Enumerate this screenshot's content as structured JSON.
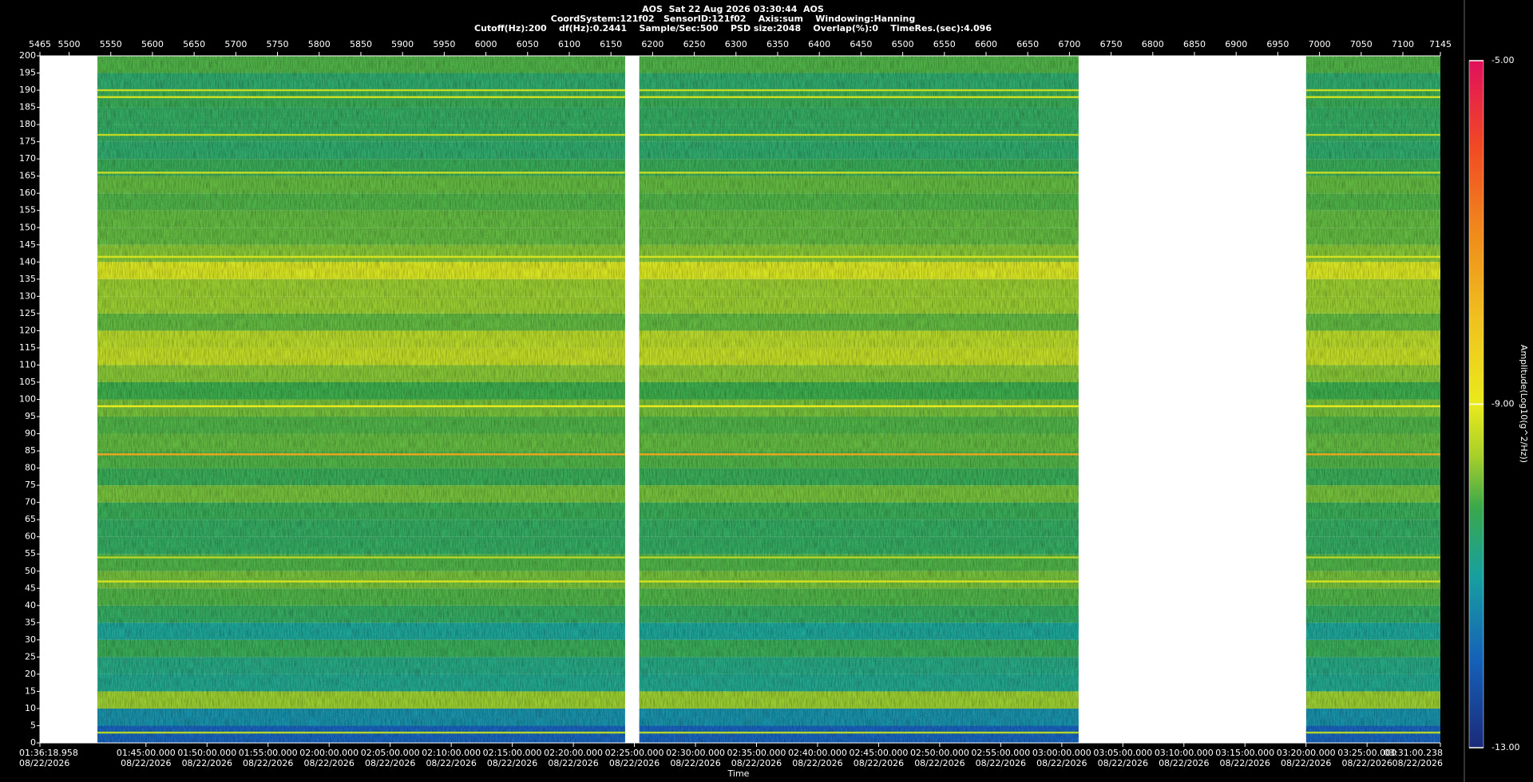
{
  "chart_data": {
    "type": "spectrogram",
    "title": "AOS  Sat 22 Aug 2026 03:30:44  AOS",
    "subtitle": "CoordSystem:121f02   SensorID:121f02    Axis:sum    Windowing:Hanning",
    "settings_line": "Cutoff(Hz):200    df(Hz):0.2441    Sample/Sec:500    PSD size:2048    Overlap(%):0    TimeRes.(sec):4.096",
    "xlabel": "Time",
    "colorbar_label": "Amplitude(Log10(g^2/Hz))",
    "x2lim": [
      5465,
      7145
    ],
    "x2ticks": [
      5465,
      5500,
      5550,
      5600,
      5650,
      5700,
      5750,
      5800,
      5850,
      5900,
      5950,
      6000,
      6050,
      6100,
      6150,
      6200,
      6250,
      6300,
      6350,
      6400,
      6450,
      6500,
      6550,
      6600,
      6650,
      6700,
      6750,
      6800,
      6850,
      6900,
      6950,
      7000,
      7050,
      7100,
      7145
    ],
    "xlim": [
      5778.958,
      12660.238
    ],
    "xticks": [
      {
        "value": 5778.958,
        "label": "01:36:18.958",
        "date": "08/22/2026"
      },
      {
        "value": 6300,
        "label": "01:45:00.000",
        "date": "08/22/2026"
      },
      {
        "value": 6600,
        "label": "01:50:00.000",
        "date": "08/22/2026"
      },
      {
        "value": 6900,
        "label": "01:55:00.000",
        "date": "08/22/2026"
      },
      {
        "value": 7200,
        "label": "02:00:00.000",
        "date": "08/22/2026"
      },
      {
        "value": 7500,
        "label": "02:05:00.000",
        "date": "08/22/2026"
      },
      {
        "value": 7800,
        "label": "02:10:00.000",
        "date": "08/22/2026"
      },
      {
        "value": 8100,
        "label": "02:15:00.000",
        "date": "08/22/2026"
      },
      {
        "value": 8400,
        "label": "02:20:00.000",
        "date": "08/22/2026"
      },
      {
        "value": 8700,
        "label": "02:25:00.000",
        "date": "08/22/2026"
      },
      {
        "value": 9000,
        "label": "02:30:00.000",
        "date": "08/22/2026"
      },
      {
        "value": 9300,
        "label": "02:35:00.000",
        "date": "08/22/2026"
      },
      {
        "value": 9600,
        "label": "02:40:00.000",
        "date": "08/22/2026"
      },
      {
        "value": 9900,
        "label": "02:45:00.000",
        "date": "08/22/2026"
      },
      {
        "value": 10200,
        "label": "02:50:00.000",
        "date": "08/22/2026"
      },
      {
        "value": 10500,
        "label": "02:55:00.000",
        "date": "08/22/2026"
      },
      {
        "value": 10800,
        "label": "03:00:00.000",
        "date": "08/22/2026"
      },
      {
        "value": 11100,
        "label": "03:05:00.000",
        "date": "08/22/2026"
      },
      {
        "value": 11400,
        "label": "03:10:00.000",
        "date": "08/22/2026"
      },
      {
        "value": 11700,
        "label": "03:15:00.000",
        "date": "08/22/2026"
      },
      {
        "value": 12000,
        "label": "03:20:00.000",
        "date": "08/22/2026"
      },
      {
        "value": 12300,
        "label": "03:25:00.000",
        "date": "08/22/2026"
      },
      {
        "value": 12660.238,
        "label": "03:31:00.238",
        "date": "08/22/2026"
      }
    ],
    "ylim": [
      0,
      200
    ],
    "yticks": [
      0,
      5,
      10,
      15,
      20,
      25,
      30,
      35,
      40,
      45,
      50,
      55,
      60,
      65,
      70,
      75,
      80,
      85,
      90,
      95,
      100,
      105,
      110,
      115,
      120,
      125,
      130,
      135,
      140,
      145,
      150,
      155,
      160,
      165,
      170,
      175,
      180,
      185,
      190,
      195,
      200
    ],
    "clim": [
      -13,
      -5
    ],
    "cticks": [
      {
        "value": -5,
        "label": "-5.00"
      },
      {
        "value": -9,
        "label": "-9.00"
      },
      {
        "value": -13,
        "label": "-13.00"
      }
    ],
    "colorscale": [
      [
        -13,
        "#1b2a7a"
      ],
      [
        -12,
        "#1560b8"
      ],
      [
        -11,
        "#17a0a0"
      ],
      [
        -10.2,
        "#3aa84a"
      ],
      [
        -9.6,
        "#a8cf2a"
      ],
      [
        -9,
        "#eaea1c"
      ],
      [
        -8,
        "#f0c020"
      ],
      [
        -7,
        "#f08a1c"
      ],
      [
        -6,
        "#f04a24"
      ],
      [
        -5,
        "#e0105c"
      ]
    ],
    "segments": [
      [
        5534,
        6167
      ],
      [
        6184,
        6711
      ],
      [
        6984,
        7145
      ]
    ],
    "spectrum": {
      "bins": [
        0,
        5,
        10,
        15,
        20,
        25,
        30,
        35,
        40,
        45,
        50,
        55,
        60,
        65,
        70,
        75,
        80,
        85,
        90,
        95,
        100,
        105,
        110,
        115,
        120,
        125,
        130,
        135,
        140,
        145,
        150,
        155,
        160,
        165,
        170,
        175,
        180,
        185,
        190,
        195,
        200
      ],
      "values": [
        -12,
        -11.3,
        -9.7,
        -10.8,
        -10.7,
        -10.3,
        -10.9,
        -10.4,
        -10.1,
        -9.9,
        -10.1,
        -10.4,
        -10.4,
        -10.3,
        -9.9,
        -10.3,
        -10.1,
        -10,
        -10.1,
        -9.9,
        -10.2,
        -9.8,
        -9.4,
        -9.5,
        -10,
        -9.7,
        -9.7,
        -9.2,
        -9.8,
        -10,
        -10,
        -10.1,
        -10,
        -10.3,
        -10.5,
        -10.4,
        -10.4,
        -10.3,
        -10.5,
        -10.1
      ]
    },
    "peaks": {
      "frequency": [
        3,
        47,
        54,
        84,
        98,
        141.5,
        166,
        177,
        188,
        190
      ],
      "amplitude": [
        -9.5,
        -9.2,
        -9.5,
        -7.5,
        -9,
        -9.2,
        -9.3,
        -9.4,
        -9.2,
        -9.3
      ]
    }
  }
}
